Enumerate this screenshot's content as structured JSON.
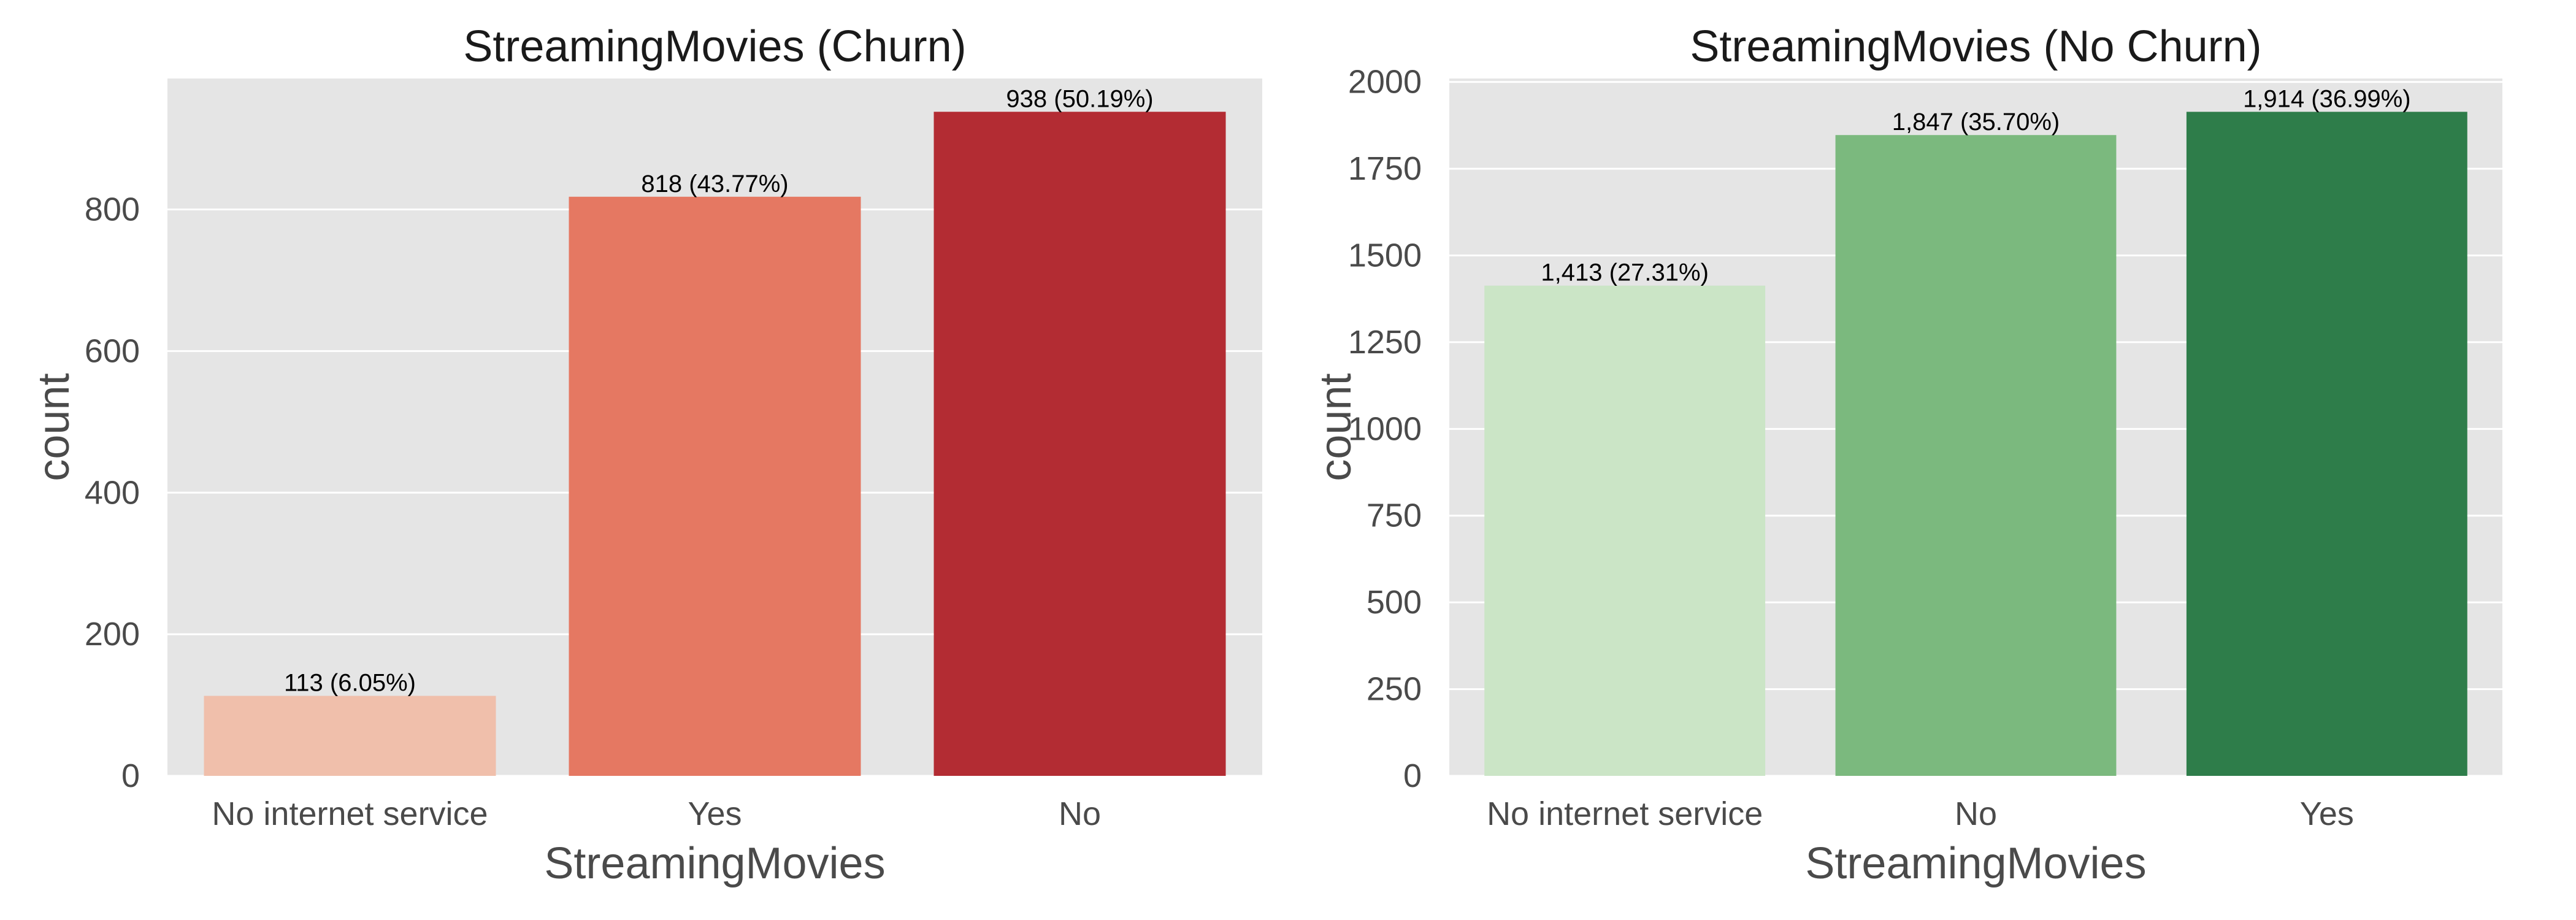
{
  "chart_data": [
    {
      "type": "bar",
      "title": "StreamingMovies (Churn)",
      "xlabel": "StreamingMovies",
      "ylabel": "count",
      "categories": [
        "No internet service",
        "Yes",
        "No"
      ],
      "values": [
        113,
        818,
        938
      ],
      "bar_labels": [
        "113 (6.05%)",
        "818 (43.77%)",
        "938 (50.19%)"
      ],
      "colors": [
        "#f0bfab",
        "#e57862",
        "#b32c33"
      ],
      "yticks": [
        0,
        200,
        400,
        600,
        800
      ],
      "ylim": [
        0,
        985
      ],
      "grid": true
    },
    {
      "type": "bar",
      "title": "StreamingMovies (No Churn)",
      "xlabel": "StreamingMovies",
      "ylabel": "count",
      "categories": [
        "No internet service",
        "No",
        "Yes"
      ],
      "values": [
        1413,
        1847,
        1914
      ],
      "bar_labels": [
        "1,413 (27.31%)",
        "1,847 (35.70%)",
        "1,914 (36.99%)"
      ],
      "colors": [
        "#cbe5c6",
        "#7bb97e",
        "#2e7d4a"
      ],
      "yticks": [
        0,
        250,
        500,
        750,
        1000,
        1250,
        1500,
        1750,
        2000
      ],
      "ylim": [
        0,
        2010
      ],
      "grid": true
    }
  ]
}
